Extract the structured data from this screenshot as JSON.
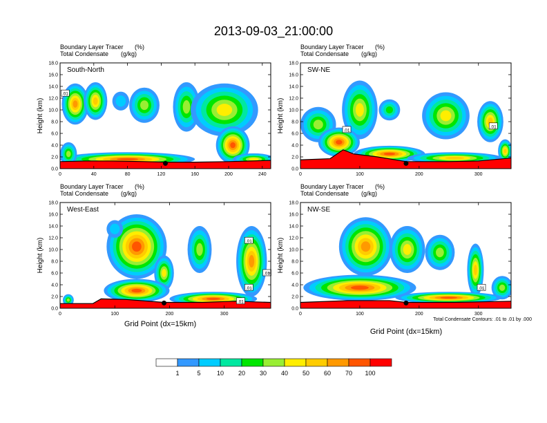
{
  "title": "2013-09-03_21:00:00",
  "chart_data": [
    {
      "type": "heatmap",
      "panel_label": "South-North",
      "left_title": "Boundary Layer Tracer",
      "left_units": "(%)",
      "left_title2": "Total Condensate",
      "left_units2": "(g/kg)",
      "ylabel": "Height (km)",
      "xlim": [
        0,
        250
      ],
      "ylim": [
        0,
        18
      ],
      "xticks": [
        0,
        40,
        80,
        120,
        160,
        200,
        240
      ],
      "yticks": [
        "0.0",
        "2.0",
        "4.0",
        "6.0",
        "8.0",
        "10.0",
        "12.0",
        "14.0",
        "16.0",
        "18.0"
      ],
      "marker_x": 125,
      "contour_labels": [
        {
          "text": ".01",
          "x": 6,
          "y": 12.8
        }
      ],
      "surface": [
        [
          0,
          1.2
        ],
        [
          30,
          1.3
        ],
        [
          60,
          1.3
        ],
        [
          100,
          1.2
        ],
        [
          125,
          1.1
        ],
        [
          160,
          1.1
        ],
        [
          200,
          1.2
        ],
        [
          250,
          1.4
        ]
      ],
      "blobs": [
        {
          "x": 18,
          "y": 11.0,
          "rx": 16,
          "ry": 3.5,
          "v": 60
        },
        {
          "x": 42,
          "y": 11.5,
          "rx": 14,
          "ry": 3.2,
          "v": 50
        },
        {
          "x": 72,
          "y": 11.5,
          "rx": 10,
          "ry": 1.6,
          "v": 5
        },
        {
          "x": 100,
          "y": 10.8,
          "rx": 18,
          "ry": 3.0,
          "v": 30
        },
        {
          "x": 150,
          "y": 10.5,
          "rx": 16,
          "ry": 4.2,
          "v": 30
        },
        {
          "x": 195,
          "y": 10.0,
          "rx": 40,
          "ry": 4.5,
          "v": 40
        },
        {
          "x": 205,
          "y": 4.0,
          "rx": 20,
          "ry": 3.2,
          "v": 70
        },
        {
          "x": 230,
          "y": 1.6,
          "rx": 25,
          "ry": 1.0,
          "v": 40
        },
        {
          "x": 80,
          "y": 1.6,
          "rx": 80,
          "ry": 1.2,
          "v": 70
        },
        {
          "x": 10,
          "y": 2.5,
          "rx": 10,
          "ry": 2.0,
          "v": 30
        }
      ]
    },
    {
      "type": "heatmap",
      "panel_label": "SW-NE",
      "left_title": "Boundary Layer Tracer",
      "left_units": "(%)",
      "left_title2": "Total Condensate",
      "left_units2": "(g/kg)",
      "ylabel": "Height (km)",
      "xlim": [
        0,
        355
      ],
      "ylim": [
        0,
        18
      ],
      "xticks": [
        0,
        100,
        200,
        300
      ],
      "yticks": [
        "0.0",
        "2.0",
        "4.0",
        "6.0",
        "8.0",
        "10.0",
        "12.0",
        "14.0",
        "16.0",
        "18.0"
      ],
      "marker_x": 178,
      "contour_labels": [
        {
          "text": ".01",
          "x": 78,
          "y": 6.6
        },
        {
          "text": ".01",
          "x": 325,
          "y": 7.2
        }
      ],
      "surface": [
        [
          0,
          1.5
        ],
        [
          50,
          1.7
        ],
        [
          72,
          3.2
        ],
        [
          90,
          2.5
        ],
        [
          130,
          2.0
        ],
        [
          178,
          1.2
        ],
        [
          250,
          1.2
        ],
        [
          300,
          1.3
        ],
        [
          355,
          1.8
        ]
      ],
      "blobs": [
        {
          "x": 30,
          "y": 7.5,
          "rx": 30,
          "ry": 3.0,
          "v": 30
        },
        {
          "x": 100,
          "y": 10.0,
          "rx": 30,
          "ry": 5.0,
          "v": 40
        },
        {
          "x": 150,
          "y": 10.0,
          "rx": 18,
          "ry": 1.8,
          "v": 20
        },
        {
          "x": 245,
          "y": 9.0,
          "rx": 40,
          "ry": 4.0,
          "v": 40
        },
        {
          "x": 320,
          "y": 8.0,
          "rx": 22,
          "ry": 3.5,
          "v": 50
        },
        {
          "x": 345,
          "y": 3.0,
          "rx": 12,
          "ry": 2.0,
          "v": 50
        },
        {
          "x": 65,
          "y": 4.5,
          "rx": 35,
          "ry": 2.5,
          "v": 70
        },
        {
          "x": 150,
          "y": 2.5,
          "rx": 60,
          "ry": 1.4,
          "v": 70
        },
        {
          "x": 260,
          "y": 1.8,
          "rx": 80,
          "ry": 1.0,
          "v": 50
        }
      ]
    },
    {
      "type": "heatmap",
      "panel_label": "West-East",
      "left_title": "Boundary Layer Tracer",
      "left_units": "(%)",
      "left_title2": "Total Condensate",
      "left_units2": "(g/kg)",
      "ylabel": "Height (km)",
      "xlim": [
        0,
        385
      ],
      "ylim": [
        0,
        18
      ],
      "xticks": [
        0,
        100,
        200,
        300
      ],
      "yticks": [
        "0.0",
        "2.0",
        "4.0",
        "6.0",
        "8.0",
        "10.0",
        "12.0",
        "14.0",
        "16.0",
        "18.0"
      ],
      "marker_x": 190,
      "contour_labels": [
        {
          "text": ".01",
          "x": 345,
          "y": 11.5
        },
        {
          "text": ".01",
          "x": 378,
          "y": 6.0
        },
        {
          "text": ".01",
          "x": 345,
          "y": 3.5
        },
        {
          "text": ".01",
          "x": 330,
          "y": 1.2
        }
      ],
      "surface": [
        [
          0,
          0.8
        ],
        [
          60,
          0.8
        ],
        [
          75,
          1.6
        ],
        [
          120,
          1.5
        ],
        [
          190,
          1.0
        ],
        [
          260,
          1.0
        ],
        [
          320,
          1.2
        ],
        [
          385,
          1.0
        ]
      ],
      "blobs": [
        {
          "x": 140,
          "y": 10.5,
          "rx": 55,
          "ry": 5.5,
          "v": 70
        },
        {
          "x": 190,
          "y": 6.0,
          "rx": 18,
          "ry": 3.0,
          "v": 40
        },
        {
          "x": 100,
          "y": 13.5,
          "rx": 15,
          "ry": 1.5,
          "v": 5
        },
        {
          "x": 255,
          "y": 10.0,
          "rx": 22,
          "ry": 4.0,
          "v": 30
        },
        {
          "x": 350,
          "y": 8.0,
          "rx": 28,
          "ry": 6.0,
          "v": 60
        },
        {
          "x": 140,
          "y": 3.0,
          "rx": 60,
          "ry": 2.0,
          "v": 70
        },
        {
          "x": 280,
          "y": 1.6,
          "rx": 80,
          "ry": 1.2,
          "v": 70
        },
        {
          "x": 15,
          "y": 1.4,
          "rx": 10,
          "ry": 1.0,
          "v": 30
        }
      ]
    },
    {
      "type": "heatmap",
      "panel_label": "NW-SE",
      "left_title": "Boundary Layer Tracer",
      "left_units": "(%)",
      "left_title2": "Total Condensate",
      "left_units2": "(g/kg)",
      "ylabel": "Height (km)",
      "xlabel": "Grid Point (dx=15km)",
      "xlim": [
        0,
        355
      ],
      "ylim": [
        0,
        18
      ],
      "xticks": [
        0,
        100,
        200,
        300
      ],
      "yticks": [
        "0.0",
        "2.0",
        "4.0",
        "6.0",
        "8.0",
        "10.0",
        "12.0",
        "14.0",
        "16.0",
        "18.0"
      ],
      "marker_x": 178,
      "contour_labels": [
        {
          "text": ".01",
          "x": 305,
          "y": 3.5
        }
      ],
      "surface": [
        [
          0,
          1.0
        ],
        [
          80,
          1.3
        ],
        [
          150,
          1.3
        ],
        [
          178,
          1.0
        ],
        [
          260,
          1.0
        ],
        [
          355,
          1.2
        ]
      ],
      "blobs": [
        {
          "x": 110,
          "y": 10.5,
          "rx": 45,
          "ry": 5.0,
          "v": 60
        },
        {
          "x": 180,
          "y": 10.0,
          "rx": 30,
          "ry": 4.0,
          "v": 40
        },
        {
          "x": 235,
          "y": 9.5,
          "rx": 25,
          "ry": 3.0,
          "v": 30
        },
        {
          "x": 295,
          "y": 6.5,
          "rx": 14,
          "ry": 4.5,
          "v": 50
        },
        {
          "x": 340,
          "y": 3.5,
          "rx": 18,
          "ry": 2.0,
          "v": 30
        },
        {
          "x": 100,
          "y": 3.5,
          "rx": 95,
          "ry": 2.2,
          "v": 70
        },
        {
          "x": 250,
          "y": 1.8,
          "rx": 90,
          "ry": 1.0,
          "v": 70
        }
      ]
    }
  ],
  "bottom_left_xlabel": "Grid Point (dx=15km)",
  "contour_note": "Total Condensate Contours: .01 to .01 by .000",
  "colorbar": {
    "colors": [
      "#ffffff",
      "#3399ff",
      "#00ccff",
      "#00e8a0",
      "#00e600",
      "#99ee33",
      "#ffee00",
      "#ffcc00",
      "#ff9900",
      "#ff5500",
      "#ff0000"
    ],
    "labels": [
      "1",
      "5",
      "10",
      "20",
      "30",
      "40",
      "50",
      "60",
      "70",
      "100"
    ]
  }
}
